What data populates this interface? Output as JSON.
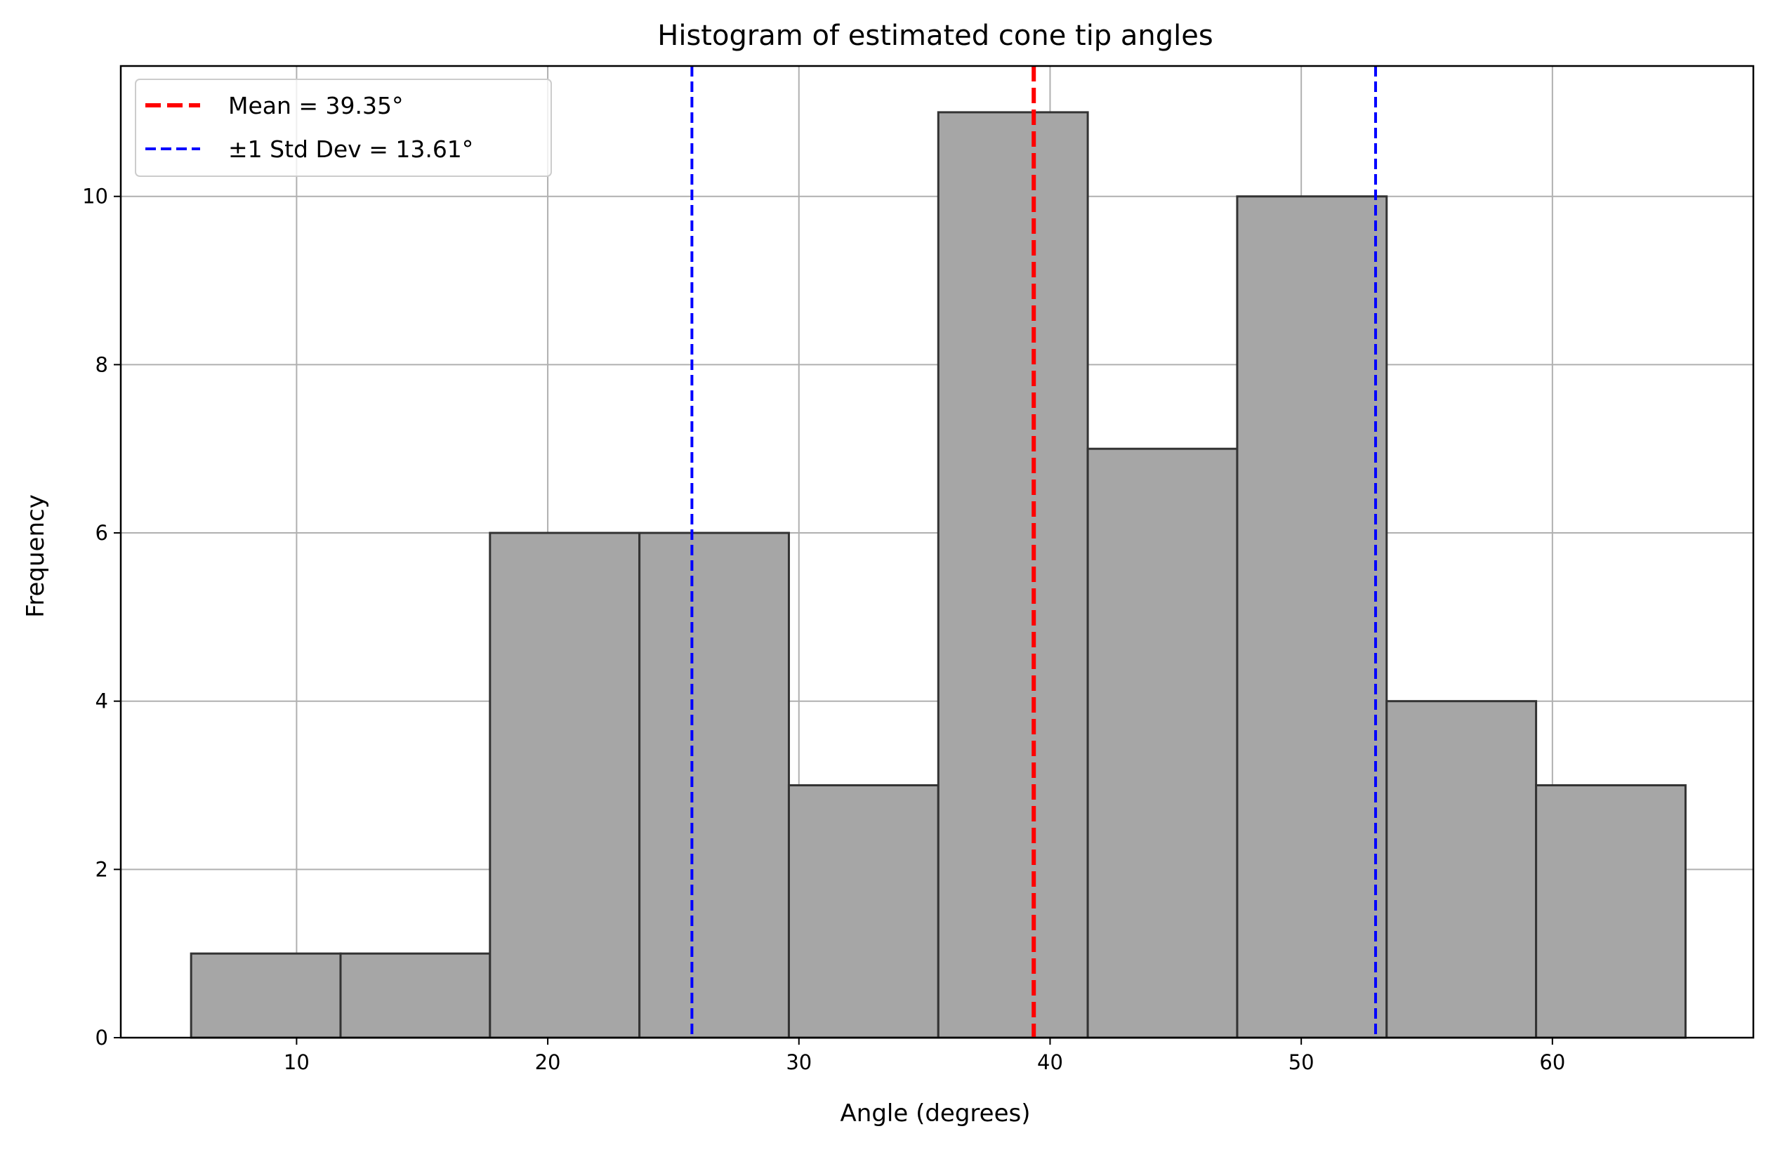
{
  "chart_data": {
    "type": "bar",
    "title": "Histogram of estimated cone tip angles",
    "xlabel": "Angle (degrees)",
    "ylabel": "Frequency",
    "xlim": [
      3.0,
      68.0
    ],
    "ylim": [
      0,
      11.55
    ],
    "grid": true,
    "legend_position": "top-left",
    "bins": [
      {
        "x0": 5.8,
        "x1": 11.75,
        "count": 1
      },
      {
        "x0": 11.75,
        "x1": 17.7,
        "count": 1
      },
      {
        "x0": 17.7,
        "x1": 23.65,
        "count": 6
      },
      {
        "x0": 23.65,
        "x1": 29.6,
        "count": 6
      },
      {
        "x0": 29.6,
        "x1": 35.55,
        "count": 3
      },
      {
        "x0": 35.55,
        "x1": 41.5,
        "count": 11
      },
      {
        "x0": 41.5,
        "x1": 47.45,
        "count": 7
      },
      {
        "x0": 47.45,
        "x1": 53.4,
        "count": 10
      },
      {
        "x0": 53.4,
        "x1": 59.35,
        "count": 4
      },
      {
        "x0": 59.35,
        "x1": 65.3,
        "count": 3
      }
    ],
    "x_ticks": [
      10,
      20,
      30,
      40,
      50,
      60
    ],
    "y_ticks": [
      0,
      2,
      4,
      6,
      8,
      10
    ],
    "reference_lines": [
      {
        "name": "Mean = 39.35°",
        "x": 39.35,
        "color": "#ff0000",
        "style": "dashed",
        "width": "thick"
      },
      {
        "name": "±1 Std Dev = 13.61°",
        "x": 25.74,
        "color": "#0000ff",
        "style": "dashed",
        "width": "normal"
      },
      {
        "name": "±1 Std Dev = 13.61°",
        "x": 52.96,
        "color": "#0000ff",
        "style": "dashed",
        "width": "normal"
      }
    ],
    "legend": [
      {
        "label": "Mean = 39.35°",
        "color": "#ff0000"
      },
      {
        "label": "±1 Std Dev = 13.61°",
        "color": "#0000ff"
      }
    ],
    "colors": {
      "bar_fill": "#a6a6a6",
      "bar_edge": "#333333",
      "grid": "#b0b0b0"
    }
  }
}
